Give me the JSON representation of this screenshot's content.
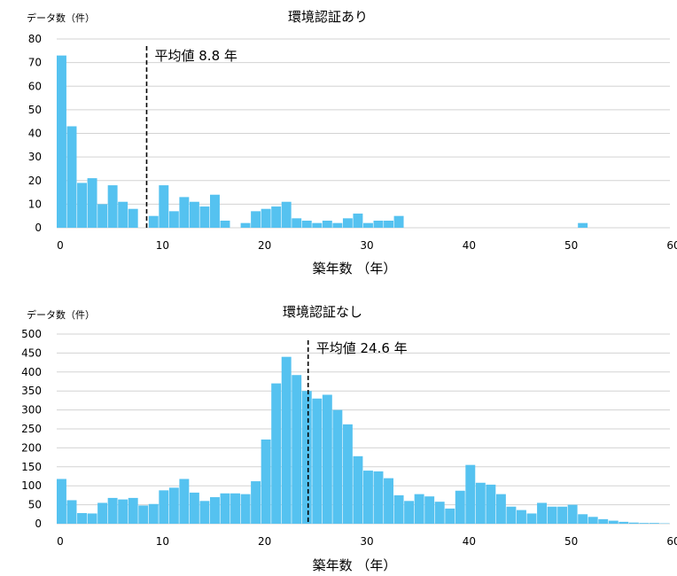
{
  "chart_data": [
    {
      "type": "bar",
      "title": "環境認証あり",
      "ylabel": "データ数（件）",
      "xlabel": "築年数 （年）",
      "xlim": [
        0,
        60
      ],
      "ylim": [
        0,
        80
      ],
      "x_ticks": [
        0,
        10,
        20,
        30,
        40,
        50,
        60
      ],
      "y_ticks": [
        0,
        10,
        20,
        30,
        40,
        50,
        60,
        70,
        80
      ],
      "bin_width": 1,
      "x": [
        0,
        1,
        2,
        3,
        4,
        5,
        6,
        7,
        8,
        9,
        10,
        11,
        12,
        13,
        14,
        15,
        16,
        17,
        18,
        19,
        20,
        21,
        22,
        23,
        24,
        25,
        26,
        27,
        28,
        29,
        30,
        31,
        32,
        33,
        34,
        35,
        36,
        37,
        38,
        39,
        40,
        41,
        42,
        43,
        44,
        45,
        46,
        47,
        48,
        49,
        50,
        51,
        52,
        53,
        54,
        55,
        56,
        57,
        58,
        59
      ],
      "values": [
        73,
        43,
        19,
        21,
        10,
        18,
        11,
        8,
        0,
        5,
        18,
        7,
        13,
        11,
        9,
        14,
        3,
        0,
        2,
        7,
        8,
        9,
        11,
        4,
        3,
        2,
        3,
        2,
        4,
        6,
        2,
        3,
        3,
        5,
        0,
        0,
        0,
        0,
        0,
        0,
        0,
        0,
        0,
        0,
        0,
        0,
        0,
        0,
        0,
        0,
        0,
        2,
        0,
        0,
        0,
        0,
        0,
        0,
        0,
        0
      ],
      "mean": 8.8,
      "mean_label": "平均値 8.8 年",
      "grid": true
    },
    {
      "type": "bar",
      "title": "環境認証なし",
      "ylabel": "データ数（件）",
      "xlabel": "築年数 （年）",
      "xlim": [
        0,
        60
      ],
      "ylim": [
        0,
        500
      ],
      "x_ticks": [
        0,
        10,
        20,
        30,
        40,
        50,
        60
      ],
      "y_ticks": [
        0,
        50,
        100,
        150,
        200,
        250,
        300,
        350,
        400,
        450,
        500
      ],
      "bin_width": 1,
      "x": [
        0,
        1,
        2,
        3,
        4,
        5,
        6,
        7,
        8,
        9,
        10,
        11,
        12,
        13,
        14,
        15,
        16,
        17,
        18,
        19,
        20,
        21,
        22,
        23,
        24,
        25,
        26,
        27,
        28,
        29,
        30,
        31,
        32,
        33,
        34,
        35,
        36,
        37,
        38,
        39,
        40,
        41,
        42,
        43,
        44,
        45,
        46,
        47,
        48,
        49,
        50,
        51,
        52,
        53,
        54,
        55,
        56,
        57,
        58,
        59
      ],
      "values": [
        118,
        62,
        28,
        27,
        55,
        68,
        64,
        68,
        48,
        52,
        88,
        95,
        118,
        82,
        60,
        70,
        80,
        80,
        78,
        112,
        222,
        370,
        440,
        392,
        350,
        330,
        340,
        300,
        262,
        178,
        140,
        138,
        120,
        75,
        60,
        78,
        72,
        58,
        40,
        87,
        155,
        108,
        103,
        78,
        45,
        36,
        27,
        55,
        45,
        45,
        50,
        25,
        18,
        12,
        8,
        5,
        3,
        2,
        2,
        1
      ],
      "mean": 24.6,
      "mean_label": "平均値 24.6 年",
      "grid": true
    }
  ]
}
